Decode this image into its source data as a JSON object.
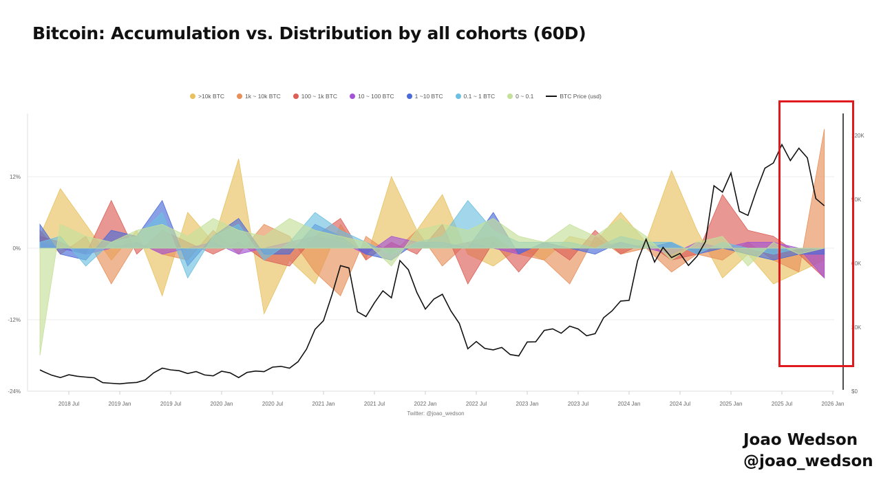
{
  "title": "Bitcoin: Accumulation vs. Distribution by all cohorts (60D)",
  "credit": {
    "name": "Joao Wedson",
    "handle": "@joao_wedson"
  },
  "watermark": "Twitter: @joao_wedson",
  "highlight_color": "#e0191f",
  "chart_data": {
    "type": "area",
    "title": "",
    "legend_position": "top",
    "grid": true,
    "left_axis": {
      "ticks": [
        "12%",
        "0%",
        "-12%",
        "-24%"
      ],
      "range": [
        -24,
        20
      ],
      "unit": "%"
    },
    "right_axis": {
      "ticks": [
        "120K",
        "90K",
        "60K",
        "30K",
        "$0"
      ],
      "range": [
        0,
        130000
      ]
    },
    "x_ticks": [
      "2018 Jul",
      "2019 Jan",
      "2019 Jul",
      "2020 Jan",
      "2020 Jul",
      "2021 Jan",
      "2021 Jul",
      "2022 Jan",
      "2022 Jul",
      "2023 Jan",
      "2023 Jul",
      "2024 Jan",
      "2024 Jul",
      "2025 Jan",
      "2025 Jul",
      "2026 Jan"
    ],
    "cohort_dates": [
      "2018-03",
      "2018-06",
      "2018-09",
      "2018-12",
      "2019-03",
      "2019-06",
      "2019-09",
      "2019-12",
      "2020-03",
      "2020-06",
      "2020-09",
      "2020-12",
      "2021-03",
      "2021-06",
      "2021-09",
      "2021-12",
      "2022-03",
      "2022-06",
      "2022-09",
      "2022-12",
      "2023-03",
      "2023-06",
      "2023-09",
      "2023-12",
      "2024-03",
      "2024-06",
      "2024-09",
      "2024-12",
      "2025-03",
      "2025-06",
      "2025-09",
      "2025-12"
    ],
    "series": [
      {
        "name": ">10k BTC",
        "color": "#e8c260",
        "values": [
          2,
          10,
          4,
          -2,
          3,
          -8,
          6,
          1,
          15,
          -11,
          -2,
          -6,
          4,
          -2,
          12,
          3,
          9,
          -1,
          -3,
          0,
          -2,
          2,
          1,
          6,
          1,
          13,
          3,
          -5,
          -1,
          -6,
          -4,
          -2
        ]
      },
      {
        "name": "1k ~ 10k BTC",
        "color": "#e8905a",
        "values": [
          3,
          -1,
          2,
          -6,
          1,
          -1,
          -2,
          3,
          -1,
          4,
          2,
          -4,
          -8,
          2,
          -1,
          3,
          -3,
          1,
          2,
          -1,
          -2,
          -6,
          2,
          -1,
          0,
          -4,
          -1,
          -2,
          1,
          -2,
          -4,
          20
        ]
      },
      {
        "name": "100 ~ 1k BTC",
        "color": "#dc6058",
        "values": [
          2,
          1,
          -1,
          8,
          -1,
          3,
          1,
          -1,
          1,
          -2,
          -3,
          2,
          5,
          -2,
          1,
          -1,
          4,
          -6,
          1,
          -4,
          1,
          -2,
          3,
          -1,
          1,
          -2,
          -1,
          9,
          3,
          2,
          -1,
          -5
        ]
      },
      {
        "name": "10 ~ 100 BTC",
        "color": "#a455d6",
        "values": [
          1,
          0,
          -1,
          0,
          1,
          -1,
          0,
          1,
          -1,
          0,
          1,
          2,
          1,
          -1,
          2,
          1,
          0,
          1,
          0,
          -1,
          1,
          0,
          0,
          1,
          0,
          -1,
          1,
          0,
          1,
          1,
          0,
          -5
        ]
      },
      {
        "name": "1 ~10 BTC",
        "color": "#4a6bd8",
        "values": [
          4,
          -1,
          -2,
          3,
          2,
          8,
          -3,
          2,
          5,
          -1,
          -1,
          4,
          2,
          -1,
          -2,
          1,
          1,
          0,
          6,
          -1,
          1,
          0,
          -1,
          1,
          0,
          1,
          -1,
          0,
          -1,
          -2,
          -1,
          -1
        ]
      },
      {
        "name": "0.1 ~ 1 BTC",
        "color": "#6ec0e0",
        "values": [
          1,
          2,
          -3,
          1,
          2,
          6,
          -5,
          2,
          4,
          -2,
          1,
          6,
          3,
          1,
          -1,
          1,
          2,
          8,
          3,
          1,
          1,
          1,
          0,
          2,
          1,
          1,
          -1,
          1,
          0,
          -1,
          0,
          0
        ]
      },
      {
        "name": "0 ~ 0.1",
        "color": "#c5e09a",
        "values": [
          -18,
          4,
          2,
          1,
          3,
          4,
          2,
          5,
          3,
          2,
          5,
          3,
          2,
          1,
          -3,
          3,
          4,
          3,
          5,
          2,
          1,
          4,
          2,
          5,
          2,
          -2,
          1,
          2,
          -3,
          1,
          -1,
          0
        ]
      }
    ],
    "price": {
      "name": "BTC Price (usd)",
      "color": "#111111",
      "start": "2018-03",
      "values": [
        10000,
        9200,
        7500,
        6400,
        7700,
        7000,
        6600,
        6300,
        4000,
        3700,
        3450,
        3850,
        4100,
        5300,
        8600,
        10800,
        10000,
        9600,
        8300,
        9200,
        7600,
        7200,
        9350,
        8600,
        6400,
        8800,
        9450,
        9150,
        11300,
        11650,
        10800,
        13800,
        19700,
        29000,
        33100,
        45200,
        58900,
        57800,
        37300,
        35000,
        41500,
        47100,
        43800,
        61300,
        57000,
        46300,
        38500,
        43200,
        45500,
        37700,
        31800,
        19900,
        23300,
        20050,
        19400,
        20500,
        17200,
        16550,
        23100,
        23150,
        28500,
        29250,
        27200,
        30500,
        29200,
        26000,
        27000,
        34500,
        37700,
        42300,
        42600,
        61200,
        71300,
        60600,
        67500,
        62700,
        64600,
        59000,
        63300,
        70200,
        96400,
        93400,
        102400,
        84400,
        82500,
        94200,
        104600,
        107100,
        115700,
        108200,
        114000,
        109500,
        90400,
        87000
      ]
    }
  }
}
